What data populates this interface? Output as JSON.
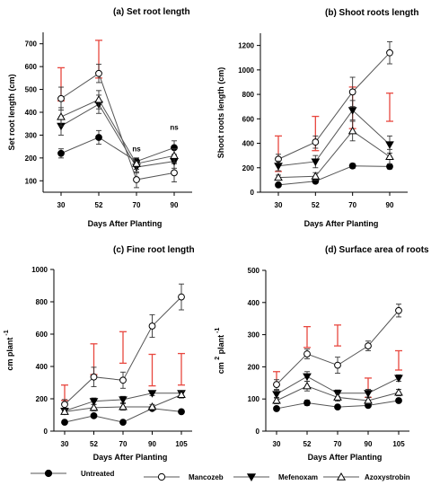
{
  "colors": {
    "series_line": "#555555",
    "lsd_bar": "#e8473f",
    "error_bar": "#333333"
  },
  "legend": [
    {
      "name": "Untreated",
      "marker": "filled-circle"
    },
    {
      "name": "Mancozeb",
      "marker": "open-circle"
    },
    {
      "name": "Mefenoxam",
      "marker": "filled-triangle-down"
    },
    {
      "name": "Azoxystrobin",
      "marker": "open-triangle-up"
    }
  ],
  "chart_data": [
    {
      "type": "line",
      "title": "(a) Set root length",
      "xlabel": "Days After Planting",
      "ylabel": "Set root length  (cm)",
      "categories": [
        "30",
        "52",
        "70",
        "90"
      ],
      "ylim": [
        50,
        750
      ],
      "yticks": [
        100,
        200,
        300,
        400,
        500,
        600,
        700
      ],
      "series": [
        {
          "name": "Untreated",
          "values": [
            220,
            290,
            185,
            245
          ],
          "err": [
            20,
            30,
            15,
            30
          ]
        },
        {
          "name": "Mancozeb",
          "values": [
            460,
            570,
            105,
            135
          ],
          "err": [
            50,
            40,
            35,
            40
          ]
        },
        {
          "name": "Mefenoxam",
          "values": [
            340,
            435,
            160,
            185
          ],
          "err": [
            40,
            40,
            25,
            30
          ]
        },
        {
          "name": "Azoxystrobin",
          "values": [
            380,
            455,
            175,
            210
          ],
          "err": [
            40,
            40,
            25,
            30
          ]
        }
      ],
      "lsd": [
        {
          "x": "30",
          "low": 450,
          "high": 595
        },
        {
          "x": "52",
          "low": 550,
          "high": 715
        }
      ],
      "annotations": [
        {
          "x": "70",
          "y": 240,
          "text": "ns"
        },
        {
          "x": "90",
          "y": 335,
          "text": "ns"
        }
      ]
    },
    {
      "type": "line",
      "title": "(b) Shoot roots length",
      "xlabel": "Days After Planting",
      "ylabel": "Shoot roots length  (cm)",
      "categories": [
        "30",
        "52",
        "70",
        "90"
      ],
      "ylim": [
        0,
        1300
      ],
      "yticks": [
        0,
        200,
        400,
        600,
        800,
        1000,
        1200
      ],
      "series": [
        {
          "name": "Untreated",
          "values": [
            60,
            90,
            215,
            210
          ],
          "err": [
            10,
            15,
            20,
            20
          ]
        },
        {
          "name": "Mancozeb",
          "values": [
            270,
            410,
            820,
            1140
          ],
          "err": [
            40,
            50,
            120,
            90
          ]
        },
        {
          "name": "Mefenoxam",
          "values": [
            215,
            250,
            670,
            390
          ],
          "err": [
            40,
            50,
            80,
            70
          ]
        },
        {
          "name": "Azoxystrobin",
          "values": [
            120,
            130,
            500,
            290
          ],
          "err": [
            20,
            30,
            80,
            60
          ]
        }
      ],
      "lsd": [
        {
          "x": "30",
          "low": 170,
          "high": 460
        },
        {
          "x": "52",
          "low": 340,
          "high": 620
        },
        {
          "x": "70",
          "low": 520,
          "high": 860
        },
        {
          "x": "90",
          "low": 580,
          "high": 810
        }
      ],
      "annotations": []
    },
    {
      "type": "line",
      "title": "(c) Fine root length",
      "xlabel": "Days After Planting",
      "ylabel": "cm plant",
      "ylabel_sup": "-1",
      "categories": [
        "30",
        "52",
        "70",
        "90",
        "105"
      ],
      "ylim": [
        0,
        1000
      ],
      "yticks": [
        0,
        200,
        400,
        600,
        800,
        1000
      ],
      "series": [
        {
          "name": "Untreated",
          "values": [
            55,
            95,
            55,
            140,
            120
          ],
          "err": [
            8,
            10,
            8,
            10,
            10
          ]
        },
        {
          "name": "Mancozeb",
          "values": [
            165,
            335,
            315,
            650,
            830
          ],
          "err": [
            30,
            60,
            50,
            70,
            80
          ]
        },
        {
          "name": "Mefenoxam",
          "values": [
            125,
            185,
            195,
            235,
            235
          ],
          "err": [
            15,
            20,
            20,
            15,
            15
          ]
        },
        {
          "name": "Azoxystrobin",
          "values": [
            120,
            145,
            150,
            150,
            225
          ],
          "err": [
            15,
            20,
            20,
            15,
            20
          ]
        }
      ],
      "lsd": [
        {
          "x": "30",
          "low": 190,
          "high": 285
        },
        {
          "x": "52",
          "low": 350,
          "high": 540
        },
        {
          "x": "70",
          "low": 420,
          "high": 615
        },
        {
          "x": "90",
          "low": 280,
          "high": 475
        },
        {
          "x": "105",
          "low": 285,
          "high": 480
        }
      ],
      "annotations": []
    },
    {
      "type": "line",
      "title": "(d) Surface area of roots",
      "xlabel": "Days After Planting",
      "ylabel": "cm",
      "ylabel_pre_sup": "2",
      "ylabel_tail": "plant",
      "ylabel_sup": "-1",
      "categories": [
        "30",
        "52",
        "70",
        "90",
        "105"
      ],
      "ylim": [
        0,
        500
      ],
      "yticks": [
        0,
        100,
        200,
        300,
        400,
        500
      ],
      "series": [
        {
          "name": "Untreated",
          "values": [
            70,
            88,
            75,
            80,
            95
          ],
          "err": [
            5,
            8,
            6,
            6,
            6
          ]
        },
        {
          "name": "Mancozeb",
          "values": [
            145,
            240,
            205,
            265,
            375
          ],
          "err": [
            15,
            15,
            25,
            15,
            20
          ]
        },
        {
          "name": "Mefenoxam",
          "values": [
            115,
            170,
            118,
            118,
            165
          ],
          "err": [
            12,
            15,
            10,
            12,
            10
          ]
        },
        {
          "name": "Azoxystrobin",
          "values": [
            95,
            140,
            105,
            95,
            120
          ],
          "err": [
            10,
            15,
            12,
            10,
            10
          ]
        }
      ],
      "lsd": [
        {
          "x": "30",
          "low": 145,
          "high": 185
        },
        {
          "x": "52",
          "low": 260,
          "high": 325
        },
        {
          "x": "70",
          "low": 265,
          "high": 330
        },
        {
          "x": "90",
          "low": 105,
          "high": 165
        },
        {
          "x": "105",
          "low": 190,
          "high": 250
        }
      ],
      "annotations": []
    }
  ]
}
